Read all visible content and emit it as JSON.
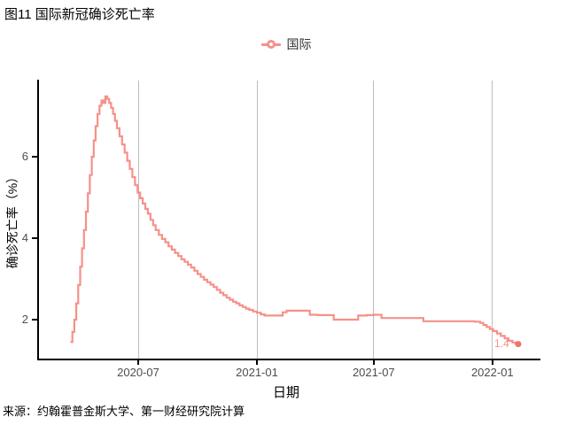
{
  "title": "图11 国际新冠确诊死亡率",
  "legend": {
    "label": "国际"
  },
  "source": "来源：约翰霍普金斯大学、第一财经研究院计算",
  "colors": {
    "line": "#f5918a",
    "point": "#ee756c",
    "grid": "#bdbdbd",
    "axis": "#000000",
    "tick_label": "#4d4d4d"
  },
  "chart_data": {
    "type": "line",
    "step": "after",
    "title": "图11 国际新冠确诊死亡率",
    "xlabel": "日期",
    "ylabel": "确诊死亡率（%）",
    "legend_position": "top-center",
    "grid": "vertical-major-only",
    "ylim": [
      1.0,
      7.9
    ],
    "end_label": "1.4",
    "x_ticks": [
      {
        "label": "2020-07",
        "date": "2020-07-01"
      },
      {
        "label": "2021-01",
        "date": "2021-01-01"
      },
      {
        "label": "2021-07",
        "date": "2021-07-01"
      },
      {
        "label": "2022-01",
        "date": "2022-01-01"
      }
    ],
    "y_ticks": [
      {
        "label": "2",
        "value": 2
      },
      {
        "label": "4",
        "value": 4
      },
      {
        "label": "6",
        "value": 6
      }
    ],
    "series": [
      {
        "name": "国际",
        "points": [
          [
            "2020-03-18",
            1.45
          ],
          [
            "2020-03-21",
            1.7
          ],
          [
            "2020-03-24",
            2.0
          ],
          [
            "2020-03-27",
            2.4
          ],
          [
            "2020-03-30",
            2.85
          ],
          [
            "2020-04-02",
            3.3
          ],
          [
            "2020-04-05",
            3.75
          ],
          [
            "2020-04-08",
            4.2
          ],
          [
            "2020-04-11",
            4.65
          ],
          [
            "2020-04-14",
            5.1
          ],
          [
            "2020-04-17",
            5.55
          ],
          [
            "2020-04-20",
            6.0
          ],
          [
            "2020-04-23",
            6.4
          ],
          [
            "2020-04-26",
            6.75
          ],
          [
            "2020-04-29",
            7.05
          ],
          [
            "2020-05-02",
            7.25
          ],
          [
            "2020-05-05",
            7.38
          ],
          [
            "2020-05-08",
            7.32
          ],
          [
            "2020-05-11",
            7.48
          ],
          [
            "2020-05-14",
            7.42
          ],
          [
            "2020-05-17",
            7.32
          ],
          [
            "2020-05-20",
            7.2
          ],
          [
            "2020-05-23",
            7.05
          ],
          [
            "2020-05-26",
            6.88
          ],
          [
            "2020-05-29",
            6.7
          ],
          [
            "2020-06-02",
            6.5
          ],
          [
            "2020-06-06",
            6.3
          ],
          [
            "2020-06-10",
            6.1
          ],
          [
            "2020-06-14",
            5.9
          ],
          [
            "2020-06-18",
            5.7
          ],
          [
            "2020-06-22",
            5.5
          ],
          [
            "2020-06-26",
            5.3
          ],
          [
            "2020-06-30",
            5.12
          ],
          [
            "2020-07-04",
            4.98
          ],
          [
            "2020-07-08",
            4.85
          ],
          [
            "2020-07-12",
            4.72
          ],
          [
            "2020-07-16",
            4.6
          ],
          [
            "2020-07-20",
            4.45
          ],
          [
            "2020-07-24",
            4.32
          ],
          [
            "2020-07-28",
            4.2
          ],
          [
            "2020-08-02",
            4.08
          ],
          [
            "2020-08-07",
            3.98
          ],
          [
            "2020-08-12",
            3.9
          ],
          [
            "2020-08-17",
            3.8
          ],
          [
            "2020-08-22",
            3.72
          ],
          [
            "2020-08-27",
            3.64
          ],
          [
            "2020-09-01",
            3.56
          ],
          [
            "2020-09-06",
            3.48
          ],
          [
            "2020-09-11",
            3.42
          ],
          [
            "2020-09-16",
            3.35
          ],
          [
            "2020-09-21",
            3.28
          ],
          [
            "2020-09-26",
            3.2
          ],
          [
            "2020-10-01",
            3.12
          ],
          [
            "2020-10-06",
            3.05
          ],
          [
            "2020-10-11",
            2.98
          ],
          [
            "2020-10-16",
            2.92
          ],
          [
            "2020-10-21",
            2.86
          ],
          [
            "2020-10-26",
            2.8
          ],
          [
            "2020-10-31",
            2.73
          ],
          [
            "2020-11-05",
            2.66
          ],
          [
            "2020-11-10",
            2.6
          ],
          [
            "2020-11-15",
            2.54
          ],
          [
            "2020-11-20",
            2.49
          ],
          [
            "2020-11-25",
            2.44
          ],
          [
            "2020-11-30",
            2.4
          ],
          [
            "2020-12-05",
            2.35
          ],
          [
            "2020-12-10",
            2.31
          ],
          [
            "2020-12-15",
            2.27
          ],
          [
            "2020-12-20",
            2.24
          ],
          [
            "2020-12-26",
            2.2
          ],
          [
            "2021-01-01",
            2.17
          ],
          [
            "2021-01-07",
            2.13
          ],
          [
            "2021-01-13",
            2.1
          ],
          [
            "2021-01-25",
            2.1
          ],
          [
            "2021-02-06",
            2.1
          ],
          [
            "2021-02-10",
            2.18
          ],
          [
            "2021-02-16",
            2.22
          ],
          [
            "2021-03-01",
            2.22
          ],
          [
            "2021-03-15",
            2.22
          ],
          [
            "2021-03-24",
            2.12
          ],
          [
            "2021-04-05",
            2.11
          ],
          [
            "2021-04-20",
            2.11
          ],
          [
            "2021-04-30",
            2.0
          ],
          [
            "2021-05-15",
            2.0
          ],
          [
            "2021-05-30",
            2.0
          ],
          [
            "2021-06-07",
            2.1
          ],
          [
            "2021-06-20",
            2.11
          ],
          [
            "2021-07-01",
            2.12
          ],
          [
            "2021-07-13",
            2.04
          ],
          [
            "2021-08-01",
            2.04
          ],
          [
            "2021-08-25",
            2.04
          ],
          [
            "2021-09-16",
            1.96
          ],
          [
            "2021-10-05",
            1.96
          ],
          [
            "2021-10-25",
            1.96
          ],
          [
            "2021-11-15",
            1.96
          ],
          [
            "2021-12-05",
            1.95
          ],
          [
            "2021-12-13",
            1.92
          ],
          [
            "2021-12-18",
            1.87
          ],
          [
            "2021-12-23",
            1.82
          ],
          [
            "2021-12-28",
            1.77
          ],
          [
            "2022-01-02",
            1.72
          ],
          [
            "2022-01-08",
            1.66
          ],
          [
            "2022-01-14",
            1.6
          ],
          [
            "2022-01-20",
            1.54
          ],
          [
            "2022-01-26",
            1.48
          ],
          [
            "2022-02-01",
            1.44
          ],
          [
            "2022-02-06",
            1.41
          ],
          [
            "2022-02-10",
            1.4
          ]
        ]
      }
    ]
  }
}
